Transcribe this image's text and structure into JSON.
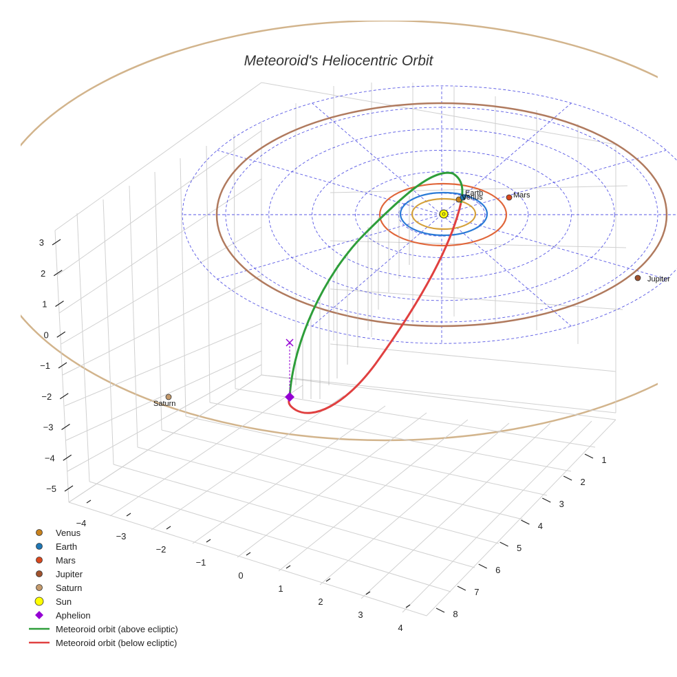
{
  "chart_data": {
    "type": "3d-line",
    "title": "Meteoroid's Heliocentric Orbit",
    "xlabel": "",
    "ylabel": "",
    "zlabel": "",
    "x_ticks": [
      -4,
      -3,
      -2,
      -1,
      0,
      1,
      2,
      3,
      4
    ],
    "y_ticks": [
      1,
      2,
      3,
      4,
      5,
      6,
      7,
      8
    ],
    "z_ticks": [
      3,
      2,
      1,
      0,
      -1,
      -2,
      -3,
      -4,
      -5
    ],
    "x_range": [
      -4.2,
      4.5
    ],
    "y_range": [
      0.5,
      8.5
    ],
    "z_range": [
      -5.5,
      3.5
    ],
    "grid": true,
    "legend_position": "bottom-left",
    "planets": [
      {
        "name": "Venus",
        "label": "Venus",
        "orbit_radius_au": 0.72,
        "color": "#c8821e",
        "orbit_color": "#d4a03a"
      },
      {
        "name": "Earth",
        "label": "Earth",
        "orbit_radius_au": 1.0,
        "color": "#1f77b4",
        "orbit_color": "#2b7bd6"
      },
      {
        "name": "Mars",
        "label": "Mars",
        "orbit_radius_au": 1.52,
        "color": "#d9481e",
        "orbit_color": "#e0663a"
      },
      {
        "name": "Jupiter",
        "label": "Jupiter",
        "orbit_radius_au": 5.2,
        "color": "#a0522d",
        "orbit_color": "#b07a5e"
      },
      {
        "name": "Saturn",
        "label": "Saturn",
        "orbit_radius_au": 9.54,
        "color": "#c49a6c",
        "orbit_color": "#d2b48c"
      }
    ],
    "ecliptic_grid_radii_au": [
      1,
      2,
      3,
      4,
      5,
      6
    ],
    "sun": {
      "name": "Sun",
      "position": [
        0,
        0,
        0
      ],
      "color": "#ffff00"
    },
    "aphelion": {
      "name": "Aphelion",
      "color": "#9400d3"
    },
    "series": [
      {
        "name": "Meteoroid orbit (above ecliptic)",
        "color": "#2e9e3a"
      },
      {
        "name": "Meteoroid orbit (below ecliptic)",
        "color": "#e04040"
      }
    ]
  },
  "legend": [
    {
      "label": "Venus",
      "marker": "dot",
      "color": "#c8821e"
    },
    {
      "label": "Earth",
      "marker": "dot",
      "color": "#1f77b4"
    },
    {
      "label": "Mars",
      "marker": "dot",
      "color": "#d9481e"
    },
    {
      "label": "Jupiter",
      "marker": "dot",
      "color": "#a0522d"
    },
    {
      "label": "Saturn",
      "marker": "dot",
      "color": "#c49a6c"
    },
    {
      "label": "Sun",
      "marker": "sun",
      "color": "#ffff00"
    },
    {
      "label": "Aphelion",
      "marker": "diamond",
      "color": "#9400d3"
    },
    {
      "label": "Meteoroid orbit (above ecliptic)",
      "marker": "line",
      "color": "#2e9e3a"
    },
    {
      "label": "Meteoroid orbit (below ecliptic)",
      "marker": "line",
      "color": "#e04040"
    }
  ]
}
